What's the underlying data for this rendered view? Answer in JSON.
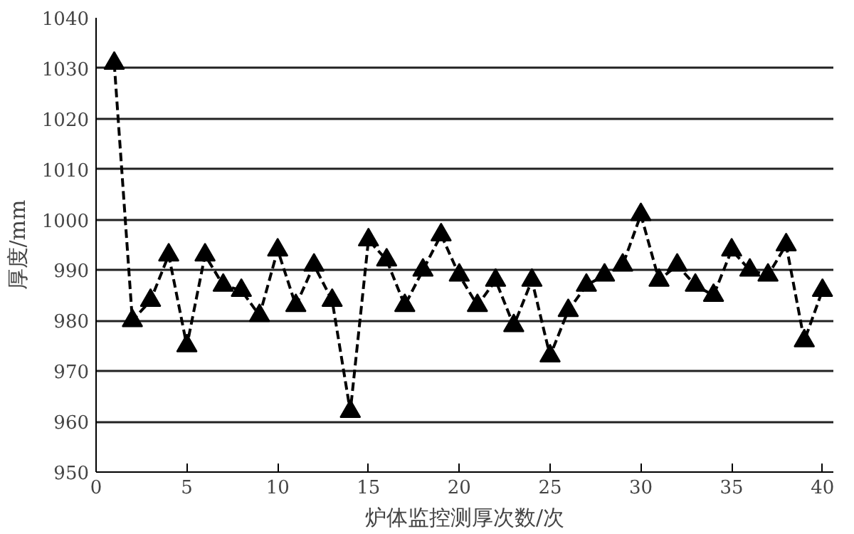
{
  "chart_data": {
    "type": "line",
    "xlabel": "炉体监控测厚次数/次",
    "ylabel": "厚度/mm",
    "x": [
      1,
      2,
      3,
      4,
      5,
      6,
      7,
      8,
      9,
      10,
      11,
      12,
      13,
      14,
      15,
      16,
      17,
      18,
      19,
      20,
      21,
      22,
      23,
      24,
      25,
      26,
      27,
      28,
      29,
      30,
      31,
      32,
      33,
      34,
      35,
      36,
      37,
      38,
      39,
      40
    ],
    "series": [
      {
        "color": "#000000",
        "values": [
          1031,
          980,
          984,
          993,
          975,
          993,
          987,
          986,
          981,
          994,
          983,
          991,
          984,
          962,
          996,
          992,
          983,
          990,
          997,
          989,
          983,
          988,
          979,
          988,
          973,
          982,
          987,
          989,
          991,
          1001,
          988,
          991,
          987,
          985,
          994,
          990,
          989,
          995,
          976,
          986
        ]
      }
    ],
    "xlim": [
      0,
      40.6
    ],
    "ylim": [
      950,
      1040
    ],
    "xticks": [
      0,
      5,
      10,
      15,
      20,
      25,
      30,
      35,
      40
    ],
    "yticks": [
      950,
      960,
      970,
      980,
      990,
      1000,
      1010,
      1020,
      1030,
      1040
    ],
    "grid": "y",
    "marker": "triangle",
    "line_style": "dashed"
  }
}
